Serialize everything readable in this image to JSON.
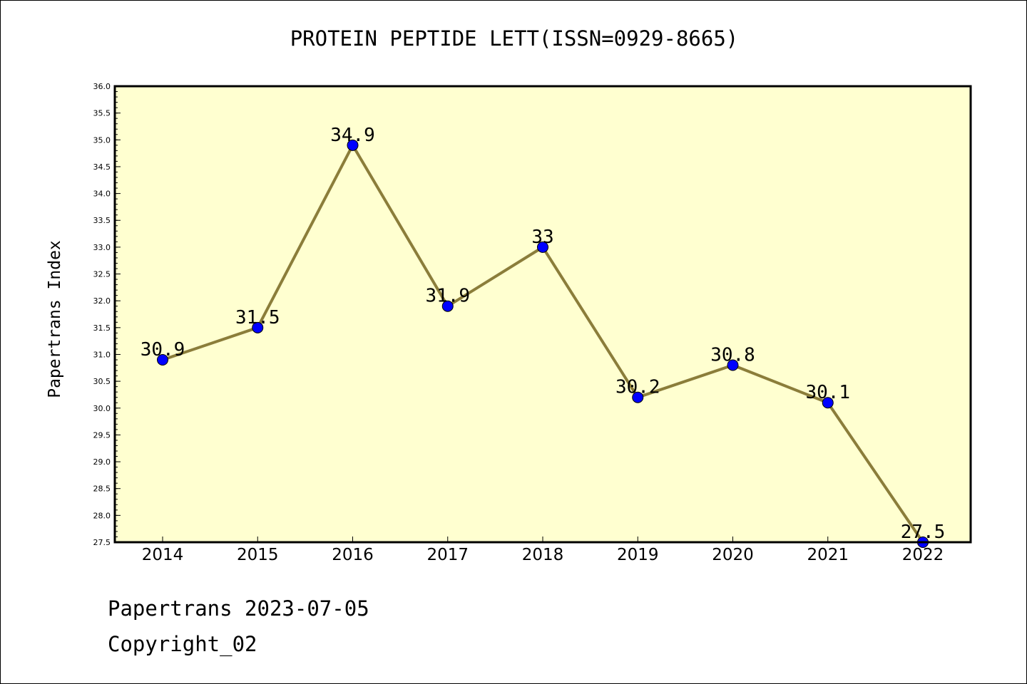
{
  "chart_data": {
    "type": "line",
    "title": "PROTEIN PEPTIDE LETT(ISSN=0929-8665)",
    "xlabel": "",
    "ylabel": "Papertrans Index",
    "categories": [
      "2014",
      "2015",
      "2016",
      "2017",
      "2018",
      "2019",
      "2020",
      "2021",
      "2022"
    ],
    "values": [
      30.9,
      31.5,
      34.9,
      31.9,
      33.0,
      30.2,
      30.8,
      30.1,
      27.5
    ],
    "data_labels": [
      "30.9",
      "31.5",
      "34.9",
      "31.9",
      "33",
      "30.2",
      "30.8",
      "30.1",
      "27.5"
    ],
    "ylim": [
      27.5,
      36.0
    ],
    "yticks": [
      "27.5",
      "28.0",
      "28.5",
      "29.0",
      "29.5",
      "30.0",
      "30.5",
      "31.0",
      "31.5",
      "32.0",
      "32.5",
      "33.0",
      "33.5",
      "34.0",
      "34.5",
      "35.0",
      "35.5",
      "36.0"
    ],
    "grid": false,
    "colors": {
      "plot_background": "#ffffd0",
      "line": "#8b7d3a",
      "marker": "#0000ff"
    }
  },
  "footer": {
    "line1": "Papertrans 2023-07-05",
    "line2": "Copyright_02"
  }
}
